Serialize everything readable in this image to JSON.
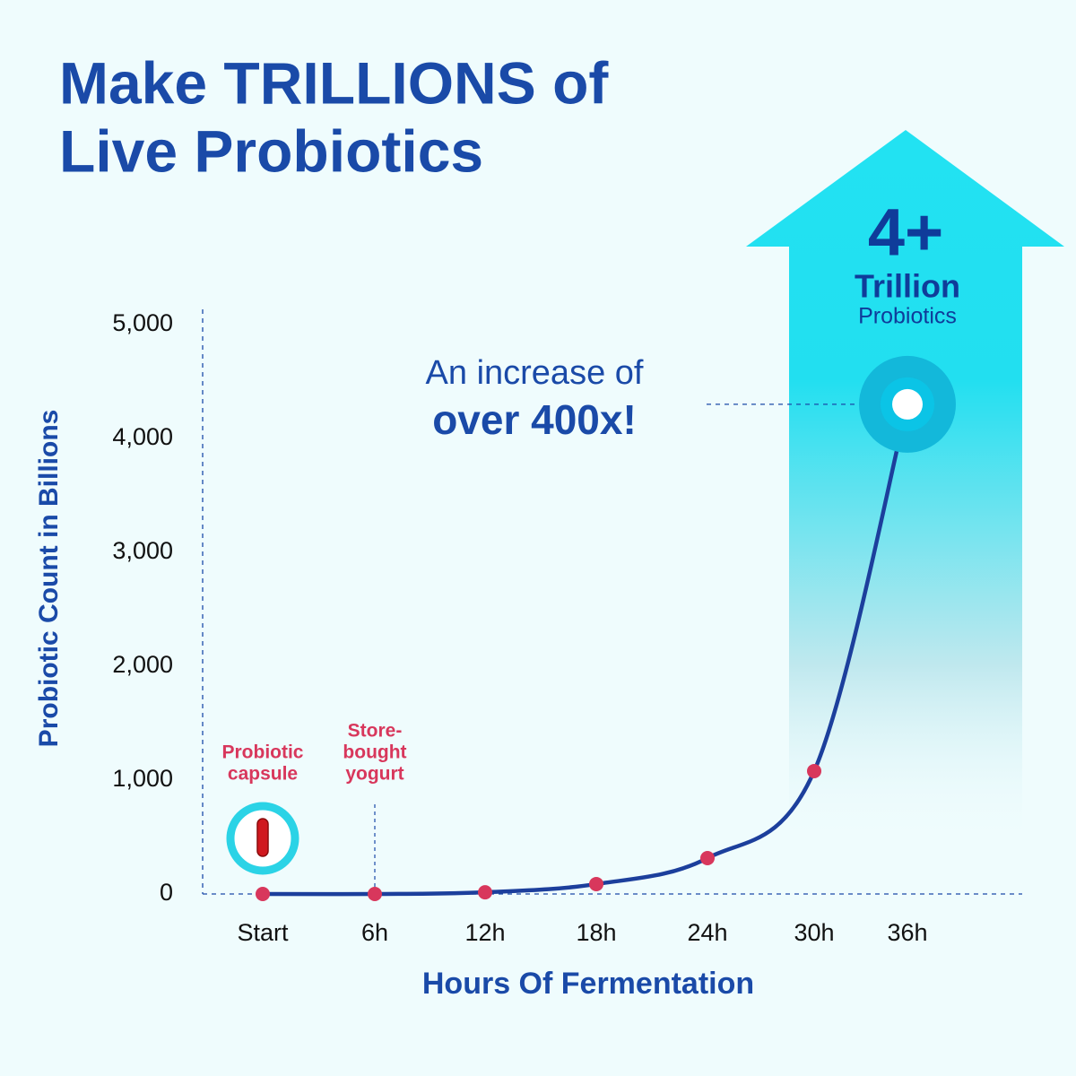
{
  "chart_data": {
    "type": "line",
    "title": [
      "Make TRILLIONS of",
      "Live Probiotics"
    ],
    "x_label": "Hours Of Fermentation",
    "y_label": "Probiotic Count in Billions",
    "categories": [
      "Start",
      "6h",
      "12h",
      "18h",
      "24h",
      "30h",
      "36h"
    ],
    "values": [
      0,
      0,
      15,
      87,
      315,
      1079,
      4300
    ],
    "color": "#1c3f9c",
    "marker_color": "#d8375c",
    "ylim": [
      0,
      5000
    ],
    "yticks": [
      0,
      {
        "value": 1000,
        "label": "1,000"
      },
      {
        "value": 2000,
        "label": "2,000"
      },
      {
        "value": 3000,
        "label": "3,000"
      },
      {
        "value": 4000,
        "label": "4,000"
      },
      {
        "value": 5000,
        "label": "5,000"
      }
    ],
    "point_annotations": [
      {
        "index": 0,
        "lines": [
          "Probiotic",
          "capsule"
        ]
      },
      {
        "index": 1,
        "lines": [
          "Store-",
          "bought",
          "yogurt"
        ]
      }
    ],
    "callout": {
      "big": "4+",
      "unit": "Trillion",
      "sub": "Probiotics",
      "lines": [
        "An increase of",
        "over 400x!"
      ]
    }
  }
}
